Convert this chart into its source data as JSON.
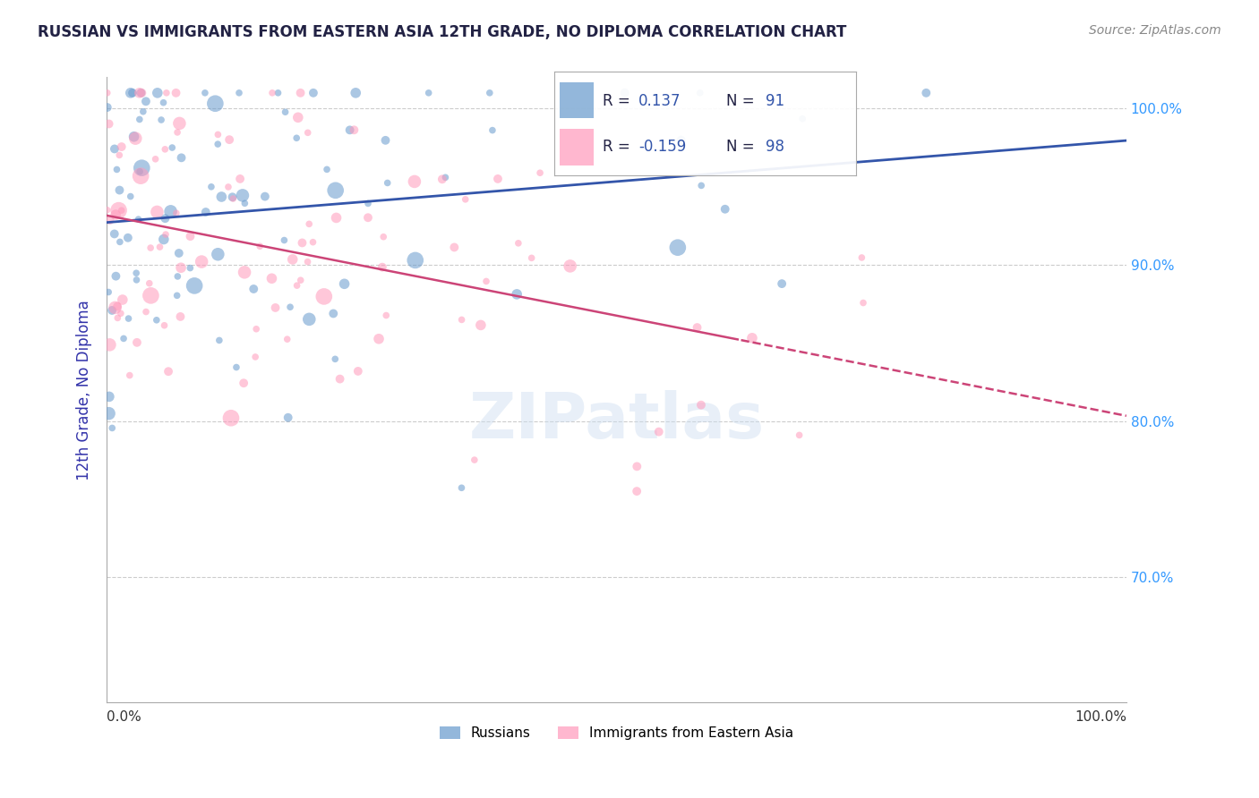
{
  "title": "RUSSIAN VS IMMIGRANTS FROM EASTERN ASIA 12TH GRADE, NO DIPLOMA CORRELATION CHART",
  "source": "Source: ZipAtlas.com",
  "ylabel": "12th Grade, No Diploma",
  "ylabel_color": "#3333aa",
  "xmin": 0.0,
  "xmax": 1.0,
  "ymin": 0.62,
  "ymax": 1.02,
  "ytick_labels": [
    "100.0%",
    "90.0%",
    "80.0%",
    "70.0%"
  ],
  "ytick_values": [
    1.0,
    0.9,
    0.8,
    0.7
  ],
  "russian_R": 0.137,
  "russian_N": 91,
  "eastern_asia_R": -0.159,
  "eastern_asia_N": 98,
  "russian_color": "#6699cc",
  "eastern_asia_color": "#ff99bb",
  "russian_line_color": "#3355aa",
  "eastern_asia_line_color": "#cc4477",
  "background_color": "#ffffff",
  "grid_color": "#cccccc"
}
